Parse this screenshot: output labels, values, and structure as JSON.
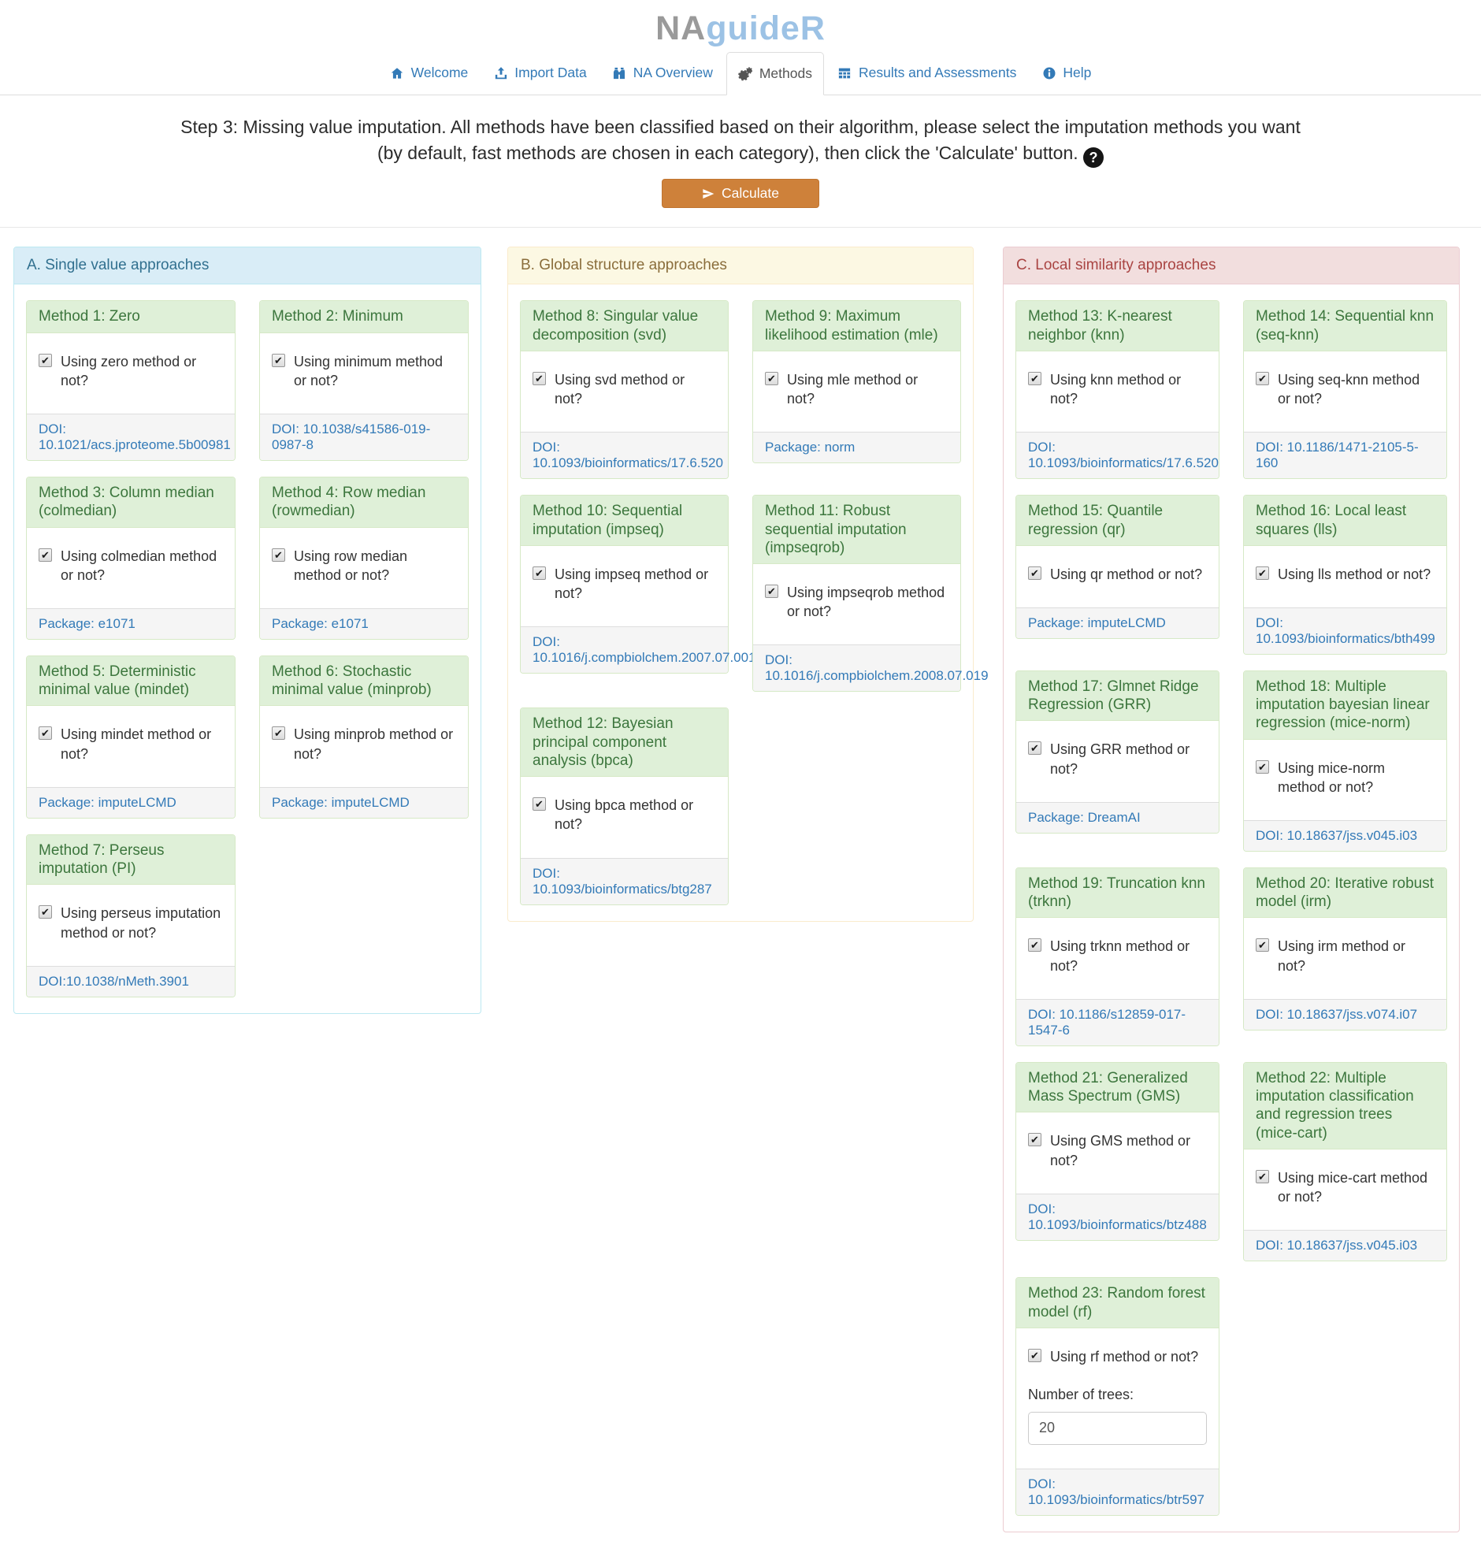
{
  "app": {
    "title_gray": "NA",
    "title_blue": "guideR"
  },
  "nav": {
    "items": [
      {
        "label": "Welcome",
        "icon": "home-icon",
        "active": false
      },
      {
        "label": "Import Data",
        "icon": "upload-icon",
        "active": false
      },
      {
        "label": "NA Overview",
        "icon": "binoculars-icon",
        "active": false
      },
      {
        "label": "Methods",
        "icon": "gears-icon",
        "active": true
      },
      {
        "label": "Results and Assessments",
        "icon": "table-icon",
        "active": false
      },
      {
        "label": "Help",
        "icon": "info-circle-icon",
        "active": false
      }
    ]
  },
  "step": {
    "text": "Step 3: Missing value imputation. All methods have been classified based on their algorithm, please select the imputation methods you want (by default, fast methods are chosen in each category), then click the 'Calculate' button.",
    "help_icon": "question-circle-icon"
  },
  "calculate": {
    "label": "Calculate",
    "icon": "paper-plane-icon"
  },
  "icons": {
    "question_glyph": "?",
    "check_glyph": "✔"
  },
  "colors": {
    "brand_gray": "#9a9a9a",
    "brand_blue": "#9cc2e5",
    "link_blue": "#337ab7",
    "button_orange": "#ce813a",
    "panel_info_bg": "#d9edf7",
    "panel_info_text": "#31708f",
    "panel_info_border": "#bce8f1",
    "panel_warning_bg": "#fcf8e3",
    "panel_warning_text": "#8a6d3b",
    "panel_warning_border": "#faebcc",
    "panel_danger_bg": "#f2dede",
    "panel_danger_text": "#a94442",
    "panel_danger_border": "#ebccd1",
    "card_success_bg": "#dff0d8",
    "card_success_text": "#3c763d",
    "card_success_border": "#d6e9c6",
    "footer_bg": "#f5f5f5"
  },
  "panels": [
    {
      "id": "A",
      "title": "A. Single value approaches",
      "rows": [
        [
          0,
          1
        ],
        [
          2,
          3
        ],
        [
          4,
          5
        ],
        [
          6
        ]
      ],
      "methods": [
        {
          "title": "Method 1: Zero",
          "checkbox_label": "Using zero method or not?",
          "checked": true,
          "footer": "DOI: 10.1021/acs.jproteome.5b00981"
        },
        {
          "title": "Method 2: Minimum",
          "checkbox_label": "Using minimum method or not?",
          "checked": true,
          "footer": "DOI: 10.1038/s41586-019-0987-8"
        },
        {
          "title": "Method 3: Column median (colmedian)",
          "checkbox_label": "Using colmedian method or not?",
          "checked": true,
          "footer": "Package: e1071"
        },
        {
          "title": "Method 4: Row median (rowmedian)",
          "checkbox_label": "Using row median method or not?",
          "checked": true,
          "footer": "Package: e1071"
        },
        {
          "title": "Method 5: Deterministic minimal value (mindet)",
          "checkbox_label": "Using mindet method or not?",
          "checked": true,
          "footer": "Package: imputeLCMD"
        },
        {
          "title": "Method 6: Stochastic minimal value (minprob)",
          "checkbox_label": "Using minprob method or not?",
          "checked": true,
          "footer": "Package: imputeLCMD"
        },
        {
          "title": "Method 7: Perseus imputation (PI)",
          "checkbox_label": "Using perseus imputation method or not?",
          "checked": true,
          "footer": "DOI:10.1038/nMeth.3901"
        }
      ]
    },
    {
      "id": "B",
      "title": "B. Global structure approaches",
      "rows": [
        [
          0,
          1
        ],
        [
          2,
          3
        ],
        [
          4
        ]
      ],
      "methods": [
        {
          "title": "Method 8: Singular value decomposition (svd)",
          "checkbox_label": "Using svd method or not?",
          "checked": true,
          "footer": "DOI: 10.1093/bioinformatics/17.6.520"
        },
        {
          "title": "Method 9: Maximum likelihood estimation (mle)",
          "checkbox_label": "Using mle method or not?",
          "checked": true,
          "footer": "Package: norm"
        },
        {
          "title": "Method 10: Sequential imputation (impseq)",
          "checkbox_label": "Using impseq method or not?",
          "checked": true,
          "footer": "DOI: 10.1016/j.compbiolchem.2007.07.001"
        },
        {
          "title": "Method 11: Robust sequential imputation (impseqrob)",
          "checkbox_label": "Using impseqrob method or not?",
          "checked": true,
          "footer": "DOI: 10.1016/j.compbiolchem.2008.07.019"
        },
        {
          "title": "Method 12: Bayesian principal component analysis (bpca)",
          "checkbox_label": "Using bpca method or not?",
          "checked": true,
          "footer": "DOI: 10.1093/bioinformatics/btg287"
        }
      ]
    },
    {
      "id": "C",
      "title": "C. Local similarity approaches",
      "rows": [
        [
          0,
          1
        ],
        [
          2,
          3
        ],
        [
          4,
          5
        ],
        [
          6,
          7
        ],
        [
          8,
          9
        ],
        [
          10
        ]
      ],
      "methods": [
        {
          "title": "Method 13: K-nearest neighbor (knn)",
          "checkbox_label": "Using knn method or not?",
          "checked": true,
          "footer": "DOI: 10.1093/bioinformatics/17.6.520"
        },
        {
          "title": "Method 14: Sequential knn (seq-knn)",
          "checkbox_label": "Using seq-knn method or not?",
          "checked": true,
          "footer": "DOI: 10.1186/1471-2105-5-160"
        },
        {
          "title": "Method 15: Quantile regression (qr)",
          "checkbox_label": "Using qr method or not?",
          "checked": true,
          "footer": "Package: imputeLCMD"
        },
        {
          "title": "Method 16: Local least squares (lls)",
          "checkbox_label": "Using lls method or not?",
          "checked": true,
          "footer": "DOI: 10.1093/bioinformatics/bth499"
        },
        {
          "title": "Method 17: Glmnet Ridge Regression (GRR)",
          "checkbox_label": "Using GRR method or not?",
          "checked": true,
          "footer": "Package: DreamAI"
        },
        {
          "title": "Method 18: Multiple imputation bayesian linear regression (mice-norm)",
          "checkbox_label": "Using mice-norm method or not?",
          "checked": true,
          "footer": "DOI: 10.18637/jss.v045.i03"
        },
        {
          "title": "Method 19: Truncation knn (trknn)",
          "checkbox_label": "Using trknn method or not?",
          "checked": true,
          "footer": "DOI: 10.1186/s12859-017-1547-6"
        },
        {
          "title": "Method 20: Iterative robust model (irm)",
          "checkbox_label": "Using irm method or not?",
          "checked": true,
          "footer": "DOI: 10.18637/jss.v074.i07"
        },
        {
          "title": "Method 21: Generalized Mass Spectrum (GMS)",
          "checkbox_label": "Using GMS method or not?",
          "checked": true,
          "footer": "DOI: 10.1093/bioinformatics/btz488"
        },
        {
          "title": "Method 22: Multiple imputation classification and regression trees (mice-cart)",
          "checkbox_label": "Using mice-cart method or not?",
          "checked": true,
          "footer": "DOI: 10.18637/jss.v045.i03"
        },
        {
          "title": "Method 23: Random forest model (rf)",
          "checkbox_label": "Using rf method or not?",
          "checked": true,
          "number_label": "Number of trees:",
          "number_value": "20",
          "footer": "DOI: 10.1093/bioinformatics/btr597"
        }
      ]
    }
  ]
}
